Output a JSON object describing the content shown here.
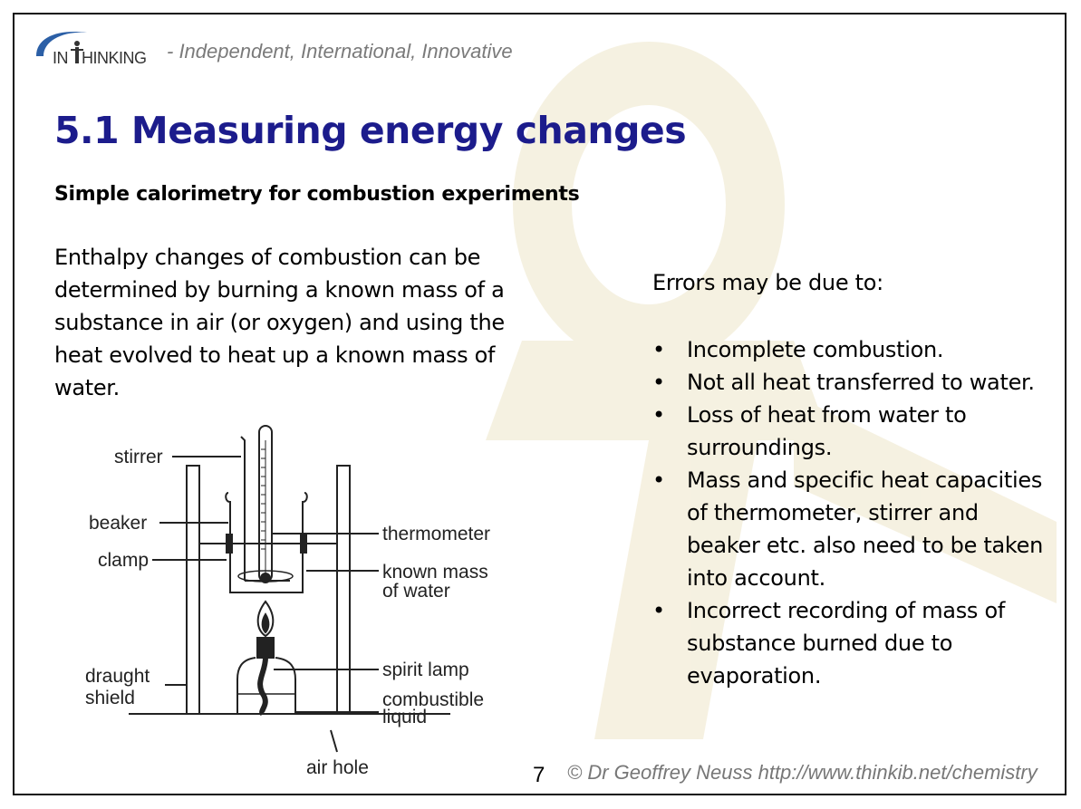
{
  "header": {
    "logo_text": "INTHINKING",
    "tagline": "- Independent, International, Innovative"
  },
  "title": "5.1 Measuring energy changes",
  "subtitle": "Simple calorimetry for combustion experiments",
  "intro": "Enthalpy changes of combustion can be determined by burning a known mass of a substance in air (or oxygen) and using the heat evolved to heat up a known mass of water.",
  "errors": {
    "heading": "Errors may be due to:",
    "items": [
      "Incomplete combustion.",
      "Not all heat transferred to water.",
      "Loss of heat from water to surroundings.",
      "Mass and specific heat capacities of thermometer, stirrer and beaker etc. also need to be taken into account.",
      "Incorrect recording of mass of substance burned due to evaporation."
    ],
    "bullet": "•"
  },
  "diagram": {
    "labels": {
      "stirrer": "stirrer",
      "beaker": "beaker",
      "clamp": "clamp",
      "draught_shield_1": "draught",
      "draught_shield_2": "shield",
      "thermometer": "thermometer",
      "known_mass_1": "known mass",
      "known_mass_2": "of water",
      "spirit_lamp": "spirit lamp",
      "combustible_1": "combustible",
      "combustible_2": "liquid",
      "air_hole": "air hole"
    }
  },
  "footer": {
    "page_number": "7",
    "credit": "© Dr Geoffrey Neuss http://www.thinkib.net/chemistry"
  },
  "colors": {
    "title": "#1c1c8c",
    "watermark": "#f3eedb",
    "logo_blue": "#2b5fa6"
  }
}
